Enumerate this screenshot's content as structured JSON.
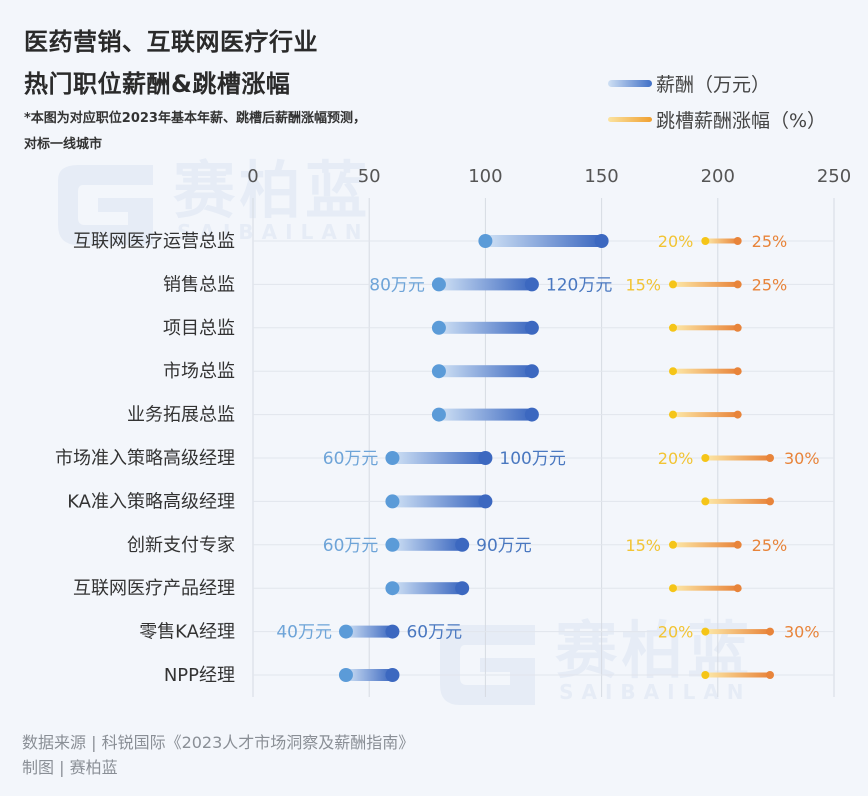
{
  "title_line1": "医药营销、互联网医疗行业",
  "title_line2": "热门职位薪酬&跳槽涨幅",
  "note_line1": "*本图为对应职位2023年基本年薪、跳槽后薪酬涨幅预测，",
  "note_line2": "对标一线城市",
  "legend": {
    "salary": "薪酬（万元）",
    "raise": "跳槽薪酬涨幅（%）"
  },
  "footer": {
    "source": "数据来源 | 科锐国际《2023人才市场洞察及薪酬指南》",
    "credit": "制图 | 赛柏蓝"
  },
  "watermark": {
    "cn": "赛柏蓝",
    "en": "SAIBAILAN"
  },
  "colors": {
    "salary_low": "#5b9bd8",
    "salary_high": "#3c68c0",
    "raise_low": "#f5c518",
    "raise_high": "#e8843a",
    "low_label": "#6ea4d8",
    "high_label": "#4a78c0",
    "raise_low_label": "#f2c434",
    "raise_high_label": "#e8843a"
  },
  "chart_data": {
    "type": "dumbbell",
    "x_ticks": [
      "0",
      "50",
      "100",
      "150",
      "200",
      "250"
    ],
    "xlim": [
      0,
      250
    ],
    "grid": true,
    "categories": [
      "互联网医疗运营总监",
      "销售总监",
      "项目总监",
      "市场总监",
      "业务拓展总监",
      "市场准入策略高级经理",
      "KA准入策略高级经理",
      "创新支付专家",
      "互联网医疗产品经理",
      "零售KA经理",
      "NPP经理"
    ],
    "salary_min": [
      100,
      80,
      80,
      80,
      80,
      60,
      60,
      60,
      60,
      40,
      40
    ],
    "salary_max": [
      150,
      120,
      120,
      120,
      120,
      100,
      100,
      90,
      90,
      60,
      60
    ],
    "raise_min_pct": [
      20,
      15,
      15,
      15,
      15,
      20,
      20,
      15,
      15,
      20,
      20
    ],
    "raise_max_pct": [
      25,
      25,
      25,
      25,
      25,
      30,
      30,
      25,
      25,
      30,
      30
    ],
    "salary_min_labels": [
      "",
      "80万元",
      "",
      "",
      "",
      "60万元",
      "",
      "60万元",
      "",
      "40万元",
      ""
    ],
    "salary_max_labels": [
      "",
      "120万元",
      "",
      "",
      "",
      "100万元",
      "",
      "90万元",
      "",
      "60万元",
      ""
    ],
    "raise_min_labels": [
      "20%",
      "15%",
      "",
      "",
      "",
      "20%",
      "",
      "15%",
      "",
      "20%",
      ""
    ],
    "raise_max_labels": [
      "25%",
      "25%",
      "",
      "",
      "",
      "30%",
      "",
      "25%",
      "",
      "30%",
      ""
    ]
  }
}
